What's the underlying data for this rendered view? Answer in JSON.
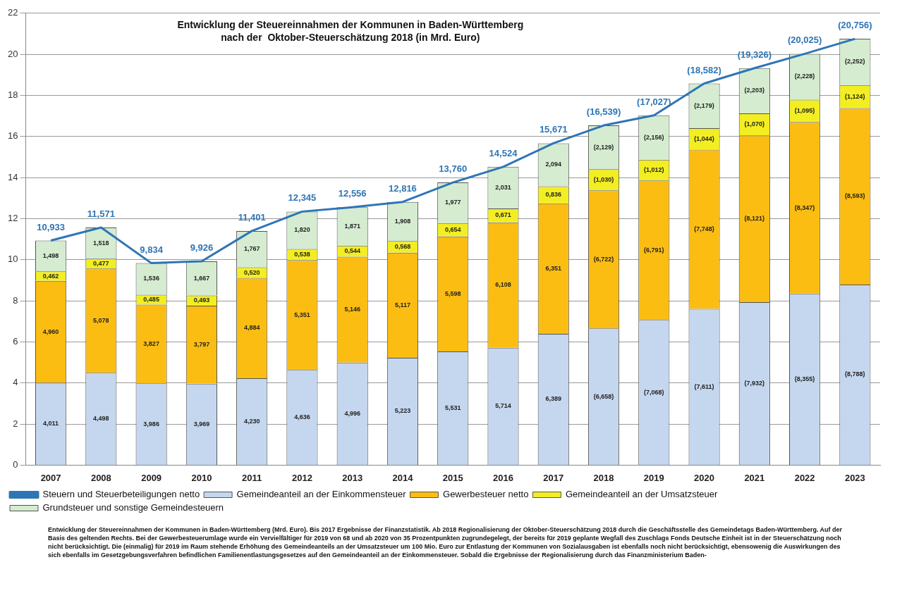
{
  "chart_data": {
    "type": "bar",
    "title": "Entwicklung der Steuereinnahmen der Kommunen in Baden-Württemberg\nnach der  Oktober-Steuerschätzung 2018 (in Mrd. Euro)",
    "categories": [
      "2007",
      "2008",
      "2009",
      "2010",
      "2011",
      "2012",
      "2013",
      "2014",
      "2015",
      "2016",
      "2017",
      "2018",
      "2019",
      "2020",
      "2021",
      "2022",
      "2023"
    ],
    "stacked": true,
    "ylim": [
      0,
      22
    ],
    "yticks": [
      0,
      2,
      4,
      6,
      8,
      10,
      12,
      14,
      16,
      18,
      20,
      22
    ],
    "grid": "y",
    "legend": "bottom",
    "series": [
      {
        "name": "Gemeindeanteil an der Einkommensteuer",
        "color": "#c5d7ee",
        "values": [
          4.011,
          4.498,
          3.986,
          3.969,
          4.23,
          4.636,
          4.996,
          5.223,
          5.531,
          5.714,
          6.389,
          6.658,
          7.068,
          7.611,
          7.932,
          8.355,
          8.788
        ],
        "value_labels": [
          "4,011",
          "4,498",
          "3,986",
          "3,969",
          "4,230",
          "4,636",
          "4,996",
          "5,223",
          "5,531",
          "5,714",
          "6,389",
          "(6,658)",
          "(7,068)",
          "(7,611)",
          "(7,932)",
          "(8,355)",
          "(8,788)"
        ]
      },
      {
        "name": "Gewerbesteuer netto",
        "color": "#fbbd12",
        "values": [
          4.96,
          5.078,
          3.827,
          3.797,
          4.884,
          5.351,
          5.146,
          5.117,
          5.598,
          6.108,
          6.351,
          6.722,
          6.791,
          7.748,
          8.121,
          8.347,
          8.593
        ],
        "value_labels": [
          "4,960",
          "5,078",
          "3,827",
          "3,797",
          "4,884",
          "5,351",
          "5,146",
          "5,117",
          "5,598",
          "6,108",
          "6,351",
          "(6,722)",
          "(6,791)",
          "(7,748)",
          "(8,121)",
          "(8,347)",
          "(8,593)"
        ]
      },
      {
        "name": "Gemeindeanteil an der Umsatzsteuer",
        "color": "#f3ee22",
        "values": [
          0.462,
          0.477,
          0.485,
          0.493,
          0.52,
          0.538,
          0.544,
          0.568,
          0.654,
          0.671,
          0.836,
          1.03,
          1.012,
          1.044,
          1.07,
          1.095,
          1.124
        ],
        "value_labels": [
          "0,462",
          "0,477",
          "0,485",
          "0,493",
          "0,520",
          "0,538",
          "0,544",
          "0,568",
          "0,654",
          "0,671",
          "0,836",
          "(1,030)",
          "(1,012)",
          "(1,044)",
          "(1,070)",
          "(1,095)",
          "(1,124)"
        ]
      },
      {
        "name": "Grundsteuer und sonstige Gemeindesteuern",
        "color": "#d5ecd0",
        "values": [
          1.498,
          1.518,
          1.536,
          1.667,
          1.767,
          1.82,
          1.871,
          1.908,
          1.977,
          2.031,
          2.094,
          2.129,
          2.156,
          2.179,
          2.203,
          2.228,
          2.252
        ],
        "value_labels": [
          "1,498",
          "1,518",
          "1,536",
          "1,667",
          "1,767",
          "1,820",
          "1,871",
          "1,908",
          "1,977",
          "2,031",
          "2,094",
          "(2,129)",
          "(2,156)",
          "(2,179)",
          "(2,203)",
          "(2,228)",
          "(2,252)"
        ]
      },
      {
        "name": "Steuern und Steuerbeteiligungen netto",
        "type": "line",
        "color": "#2e75b6",
        "marker": "none",
        "values": [
          10.933,
          11.571,
          9.834,
          9.926,
          11.401,
          12.345,
          12.556,
          12.816,
          13.76,
          14.524,
          15.671,
          16.539,
          17.027,
          18.582,
          19.326,
          20.025,
          20.756
        ],
        "value_labels": [
          "10,933",
          "11,571",
          "9,834",
          "9,926",
          "11,401",
          "12,345",
          "12,556",
          "12,816",
          "13,760",
          "14,524",
          "15,671",
          "(16,539)",
          "(17,027)",
          "(18,582)",
          "(19,326)",
          "(20,025)",
          "(20,756)"
        ]
      }
    ],
    "annotations": [
      "Entwicklung der Steuereinnahmen der Kommunen in Baden-Württemberg (Mrd. Euro). Bis 2017 Ergebnisse der Finanzstatistik. Ab 2018 Regionalisierung der Oktober-Steuerschätzung 2018 durch die Geschäftsstelle des Gemeindetags Baden-Württemberg. Auf der Basis des geltenden Rechts. Bei der Gewerbesteuerumlage wurde ein Vervielfältiger für 2019 von 68 und ab 2020 von 35 Prozentpunkten zugrundegelegt, der bereits für 2019 geplante Wegfall des Zuschlags Fonds Deutsche Einheit ist in der Steuerschätzung noch nicht berücksichtigt. Die (einmalig) für 2019 im Raum stehende Erhöhung des Gemeindeanteils an der Umsatzsteuer um 100 Mio. Euro zur Entlastung der Kommunen von Sozialausgaben ist ebenfalls noch nicht berücksichtigt, ebensowenig die Auswirkungen des sich ebenfalls im Gesetzgebungsverfahren befindlichen Familienentlastungsgesetzes auf den Gemeindeanteil an der Einkommensteuer. Sobald die Ergebnisse der Regionalisierung durch das Finanzministerium Baden-"
    ]
  }
}
